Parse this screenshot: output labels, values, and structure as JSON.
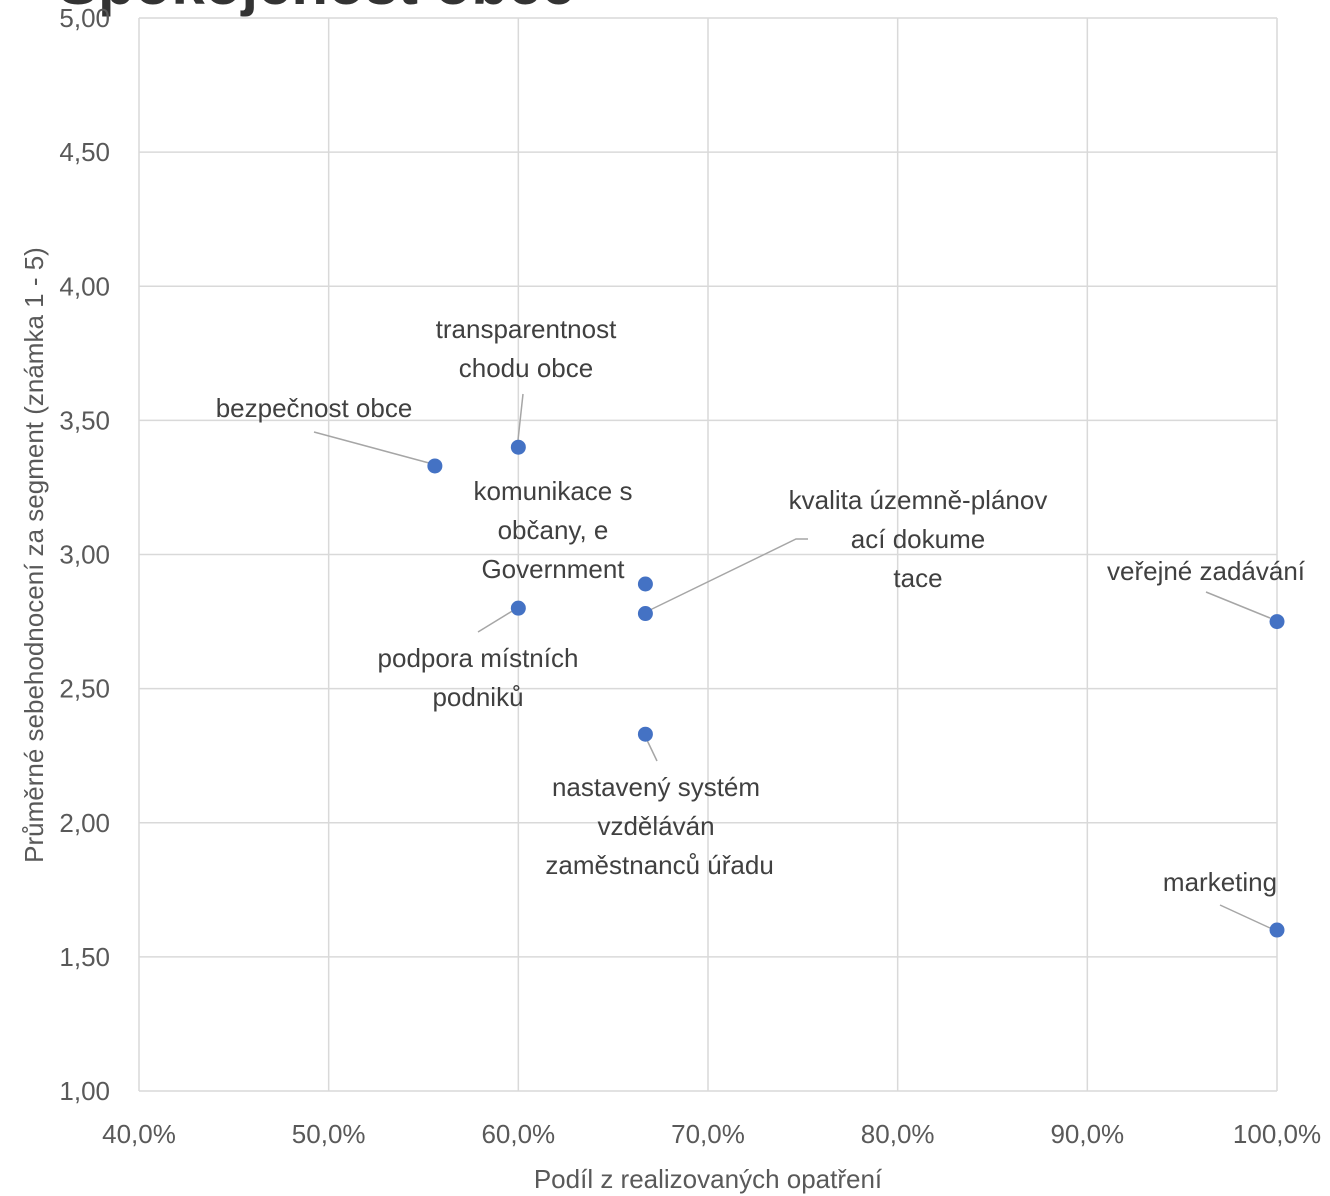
{
  "chart_data": {
    "type": "scatter",
    "title": "Spokojenost obce",
    "xlabel": "Podíl z realizovaných opatření",
    "ylabel": "Průměrné sebehodnocení za segment (známka 1 - 5)",
    "xlim": [
      0.4,
      1.0
    ],
    "ylim": [
      1.0,
      5.0
    ],
    "x_ticks": [
      "40,0%",
      "50,0%",
      "60,0%",
      "70,0%",
      "80,0%",
      "90,0%",
      "100,0%"
    ],
    "y_ticks": [
      "1,00",
      "1,50",
      "2,00",
      "2,50",
      "3,00",
      "3,50",
      "4,00",
      "4,50",
      "5,00"
    ],
    "grid": true,
    "points": [
      {
        "label": "bezpečnost obce",
        "x": 0.556,
        "y": 3.33
      },
      {
        "label": "transparentnost chodu obce",
        "x": 0.6,
        "y": 3.4
      },
      {
        "label": "komunikace s občany, e-Government",
        "x": 0.667,
        "y": 2.89
      },
      {
        "label": "kvalita územně-plánovací dokumentace",
        "x": 0.667,
        "y": 2.78
      },
      {
        "label": "podpora místních podniků",
        "x": 0.6,
        "y": 2.8
      },
      {
        "label": "nastavený systém vzdělávání zaměstnanců úřadu",
        "x": 0.667,
        "y": 2.33
      },
      {
        "label": "veřejné zadávání",
        "x": 1.0,
        "y": 2.75
      },
      {
        "label": "marketing",
        "x": 1.0,
        "y": 1.6
      }
    ]
  }
}
